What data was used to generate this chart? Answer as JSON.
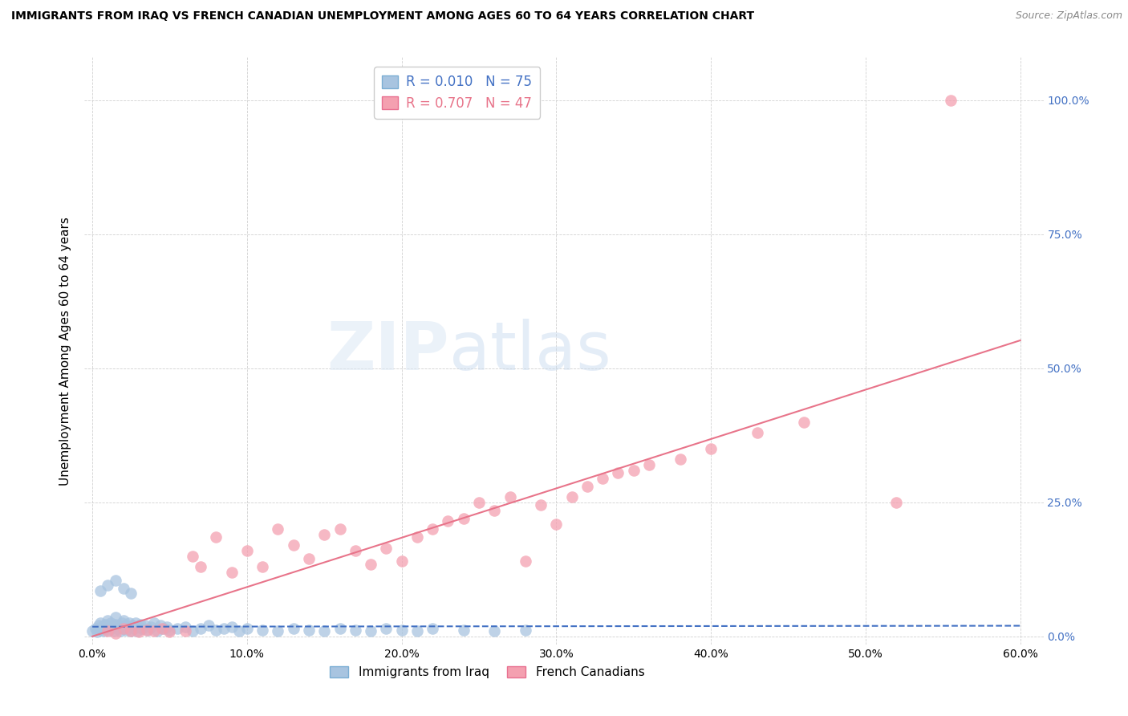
{
  "title": "IMMIGRANTS FROM IRAQ VS FRENCH CANADIAN UNEMPLOYMENT AMONG AGES 60 TO 64 YEARS CORRELATION CHART",
  "source": "Source: ZipAtlas.com",
  "ylabel": "Unemployment Among Ages 60 to 64 years",
  "background_color": "#ffffff",
  "grid_color": "#cccccc",
  "iraq_line_color": "#4472c4",
  "french_line_color": "#e8748a",
  "iraq_scatter_color": "#a8c4e0",
  "french_scatter_color": "#f4a0b0",
  "iraq_R": 0.01,
  "iraq_N": 75,
  "french_R": 0.707,
  "french_N": 47,
  "iraq_line_slope": 0.003,
  "iraq_line_intercept": 0.018,
  "french_line_slope": 0.92,
  "french_line_intercept": 0.0,
  "xlim": [
    0.0,
    0.6
  ],
  "ylim": [
    0.0,
    1.05
  ],
  "xtick_vals": [
    0.0,
    0.1,
    0.2,
    0.3,
    0.4,
    0.5,
    0.6
  ],
  "ytick_vals": [
    0.0,
    0.25,
    0.5,
    0.75,
    1.0
  ],
  "ytick_labels": [
    "0.0%",
    "25.0%",
    "50.0%",
    "75.0%",
    "100.0%"
  ],
  "iraq_x": [
    0.0,
    0.002,
    0.003,
    0.004,
    0.005,
    0.005,
    0.006,
    0.007,
    0.008,
    0.009,
    0.01,
    0.01,
    0.011,
    0.012,
    0.013,
    0.014,
    0.015,
    0.015,
    0.016,
    0.017,
    0.018,
    0.019,
    0.02,
    0.02,
    0.021,
    0.022,
    0.023,
    0.024,
    0.025,
    0.026,
    0.027,
    0.028,
    0.029,
    0.03,
    0.031,
    0.032,
    0.034,
    0.036,
    0.038,
    0.04,
    0.042,
    0.044,
    0.046,
    0.048,
    0.05,
    0.055,
    0.06,
    0.065,
    0.07,
    0.075,
    0.08,
    0.085,
    0.09,
    0.095,
    0.1,
    0.11,
    0.12,
    0.13,
    0.14,
    0.15,
    0.16,
    0.17,
    0.18,
    0.19,
    0.2,
    0.21,
    0.22,
    0.24,
    0.26,
    0.28,
    0.005,
    0.01,
    0.015,
    0.02,
    0.025
  ],
  "iraq_y": [
    0.01,
    0.015,
    0.008,
    0.02,
    0.012,
    0.025,
    0.018,
    0.01,
    0.022,
    0.015,
    0.03,
    0.02,
    0.012,
    0.025,
    0.018,
    0.01,
    0.022,
    0.035,
    0.015,
    0.02,
    0.01,
    0.025,
    0.03,
    0.015,
    0.02,
    0.012,
    0.018,
    0.025,
    0.01,
    0.02,
    0.015,
    0.025,
    0.01,
    0.018,
    0.022,
    0.015,
    0.02,
    0.012,
    0.018,
    0.025,
    0.01,
    0.02,
    0.015,
    0.018,
    0.012,
    0.015,
    0.018,
    0.01,
    0.015,
    0.02,
    0.012,
    0.015,
    0.018,
    0.01,
    0.015,
    0.012,
    0.01,
    0.015,
    0.012,
    0.01,
    0.015,
    0.012,
    0.01,
    0.015,
    0.012,
    0.01,
    0.015,
    0.012,
    0.01,
    0.012,
    0.085,
    0.095,
    0.105,
    0.09,
    0.08
  ],
  "french_x": [
    0.01,
    0.015,
    0.02,
    0.025,
    0.03,
    0.035,
    0.04,
    0.045,
    0.05,
    0.06,
    0.065,
    0.07,
    0.08,
    0.09,
    0.1,
    0.11,
    0.12,
    0.13,
    0.14,
    0.15,
    0.16,
    0.17,
    0.18,
    0.19,
    0.2,
    0.21,
    0.22,
    0.23,
    0.24,
    0.25,
    0.26,
    0.27,
    0.28,
    0.29,
    0.3,
    0.31,
    0.32,
    0.33,
    0.34,
    0.35,
    0.36,
    0.38,
    0.4,
    0.43,
    0.46,
    0.52,
    0.555
  ],
  "french_y": [
    0.01,
    0.005,
    0.015,
    0.01,
    0.008,
    0.012,
    0.01,
    0.015,
    0.008,
    0.01,
    0.15,
    0.13,
    0.185,
    0.12,
    0.16,
    0.13,
    0.2,
    0.17,
    0.145,
    0.19,
    0.2,
    0.16,
    0.135,
    0.165,
    0.14,
    0.185,
    0.2,
    0.215,
    0.22,
    0.25,
    0.235,
    0.26,
    0.14,
    0.245,
    0.21,
    0.26,
    0.28,
    0.295,
    0.305,
    0.31,
    0.32,
    0.33,
    0.35,
    0.38,
    0.4,
    0.25,
    1.0
  ]
}
